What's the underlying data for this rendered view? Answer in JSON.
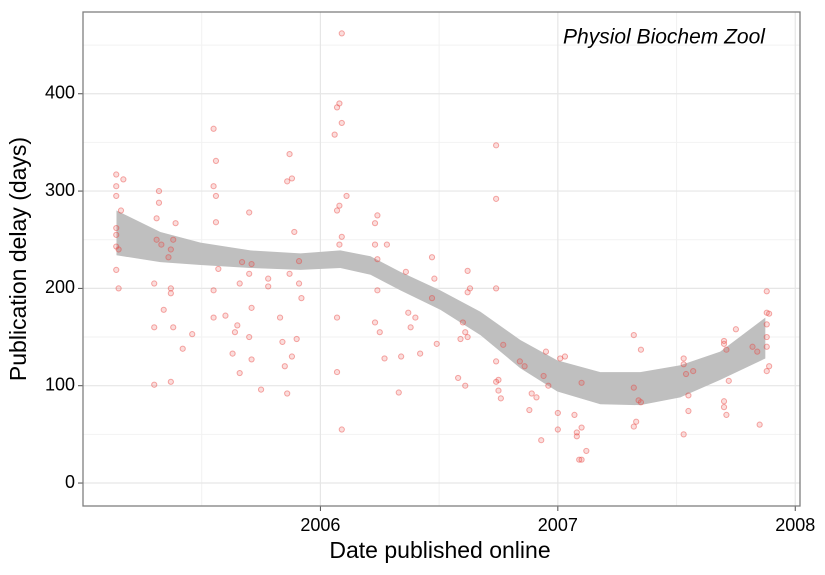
{
  "chart_data": {
    "type": "scatter",
    "annotation": "Physiol Biochem Zool",
    "x_label": "Date published online",
    "y_label": "Publication delay (days)",
    "xlim": [
      2005.0,
      2008.02
    ],
    "ylim": [
      -23.6,
      484
    ],
    "xticks": [
      2006,
      2007,
      2008
    ],
    "yticks": [
      0,
      100,
      200,
      300,
      400
    ],
    "xminor": [
      2005.5,
      2006.5,
      2007.5
    ],
    "yminor": [
      50,
      150,
      250,
      350,
      450
    ],
    "grid": true,
    "series": [
      {
        "color": "#e8423f",
        "x": [
          2005.14,
          2005.14,
          2005.14,
          2005.14,
          2005.14,
          2005.14,
          2005.14,
          2005.15,
          2005.16,
          2005.17,
          2005.15,
          2005.3,
          2005.3,
          2005.3,
          2005.31,
          2005.31,
          2005.32,
          2005.32,
          2005.33,
          2005.34,
          2005.37,
          2005.37,
          2005.37,
          2005.36,
          2005.38,
          2005.39,
          2005.38,
          2005.37,
          2005.42,
          2005.46,
          2005.55,
          2005.56,
          2005.55,
          2005.56,
          2005.56,
          2005.57,
          2005.55,
          2005.55,
          2005.6,
          2005.63,
          2005.64,
          2005.65,
          2005.66,
          2005.66,
          2005.67,
          2005.7,
          2005.7,
          2005.71,
          2005.71,
          2005.7,
          2005.71,
          2005.75,
          2005.78,
          2005.78,
          2005.83,
          2005.84,
          2005.85,
          2005.86,
          2005.86,
          2005.87,
          2005.88,
          2005.87,
          2005.89,
          2005.91,
          2005.91,
          2005.92,
          2005.9,
          2005.88,
          2006.06,
          2006.07,
          2006.08,
          2006.09,
          2006.09,
          2006.07,
          2006.08,
          2006.09,
          2006.08,
          2006.07,
          2006.07,
          2006.09,
          2006.11,
          2006.23,
          2006.24,
          2006.23,
          2006.24,
          2006.24,
          2006.23,
          2006.25,
          2006.27,
          2006.28,
          2006.33,
          2006.34,
          2006.36,
          2006.37,
          2006.38,
          2006.4,
          2006.42,
          2006.47,
          2006.48,
          2006.47,
          2006.49,
          2006.58,
          2006.59,
          2006.6,
          2006.61,
          2006.62,
          2006.62,
          2006.62,
          2006.63,
          2006.61,
          2006.74,
          2006.74,
          2006.74,
          2006.74,
          2006.74,
          2006.75,
          2006.75,
          2006.76,
          2006.77,
          2006.84,
          2006.86,
          2006.88,
          2006.89,
          2006.91,
          2006.93,
          2006.94,
          2006.95,
          2006.96,
          2007.0,
          2007.0,
          2007.01,
          2007.03,
          2007.07,
          2007.08,
          2007.08,
          2007.09,
          2007.1,
          2007.1,
          2007.12,
          2007.1,
          2007.32,
          2007.32,
          2007.32,
          2007.33,
          2007.34,
          2007.35,
          2007.35,
          2007.53,
          2007.53,
          2007.54,
          2007.55,
          2007.53,
          2007.55,
          2007.57,
          2007.7,
          2007.7,
          2007.71,
          2007.7,
          2007.7,
          2007.71,
          2007.72,
          2007.75,
          2007.82,
          2007.84,
          2007.85,
          2007.88,
          2007.88,
          2007.88,
          2007.88,
          2007.88,
          2007.89,
          2007.88,
          2007.89
        ],
        "values": [
          317,
          305,
          295,
          262,
          255,
          243,
          219,
          200,
          280,
          312,
          240,
          101,
          160,
          205,
          250,
          272,
          300,
          288,
          245,
          178,
          104,
          195,
          200,
          232,
          160,
          267,
          250,
          240,
          138,
          153,
          364,
          331,
          305,
          295,
          268,
          220,
          198,
          170,
          172,
          133,
          155,
          162,
          205,
          113,
          227,
          278,
          215,
          225,
          180,
          150,
          127,
          96,
          202,
          210,
          170,
          145,
          120,
          92,
          310,
          338,
          313,
          215,
          258,
          228,
          205,
          190,
          148,
          130,
          358,
          386,
          390,
          462,
          370,
          280,
          285,
          253,
          245,
          170,
          114,
          55,
          295,
          267,
          275,
          245,
          230,
          198,
          165,
          155,
          128,
          245,
          93,
          130,
          217,
          175,
          160,
          170,
          133,
          232,
          210,
          190,
          143,
          108,
          148,
          165,
          155,
          150,
          196,
          218,
          200,
          100,
          347,
          292,
          200,
          125,
          104,
          106,
          95,
          87,
          142,
          125,
          120,
          75,
          92,
          88,
          44,
          110,
          135,
          100,
          72,
          55,
          128,
          130,
          70,
          52,
          48,
          24,
          57,
          24,
          33,
          103,
          152,
          98,
          58,
          63,
          85,
          83,
          137,
          128,
          122,
          112,
          90,
          50,
          74,
          115,
          143,
          146,
          137,
          84,
          78,
          70,
          105,
          158,
          140,
          135,
          60,
          197,
          175,
          163,
          150,
          140,
          120,
          115,
          174
        ]
      }
    ],
    "band": {
      "color": "#bfbfbf",
      "x": [
        2005.141,
        2005.326,
        2005.495,
        2005.705,
        2005.916,
        2006.084,
        2006.211,
        2006.337,
        2006.505,
        2006.674,
        2006.842,
        2006.998,
        2007.179,
        2007.347,
        2007.516,
        2007.684,
        2007.874
      ],
      "upper": [
        280,
        258,
        247,
        239,
        236,
        239,
        233,
        217,
        198,
        176,
        147,
        126,
        114,
        114,
        121,
        135,
        170
      ],
      "lower": [
        234,
        227,
        224,
        221,
        219,
        221,
        214,
        198,
        178,
        152,
        118,
        94,
        81,
        80,
        88,
        106,
        128
      ]
    }
  }
}
